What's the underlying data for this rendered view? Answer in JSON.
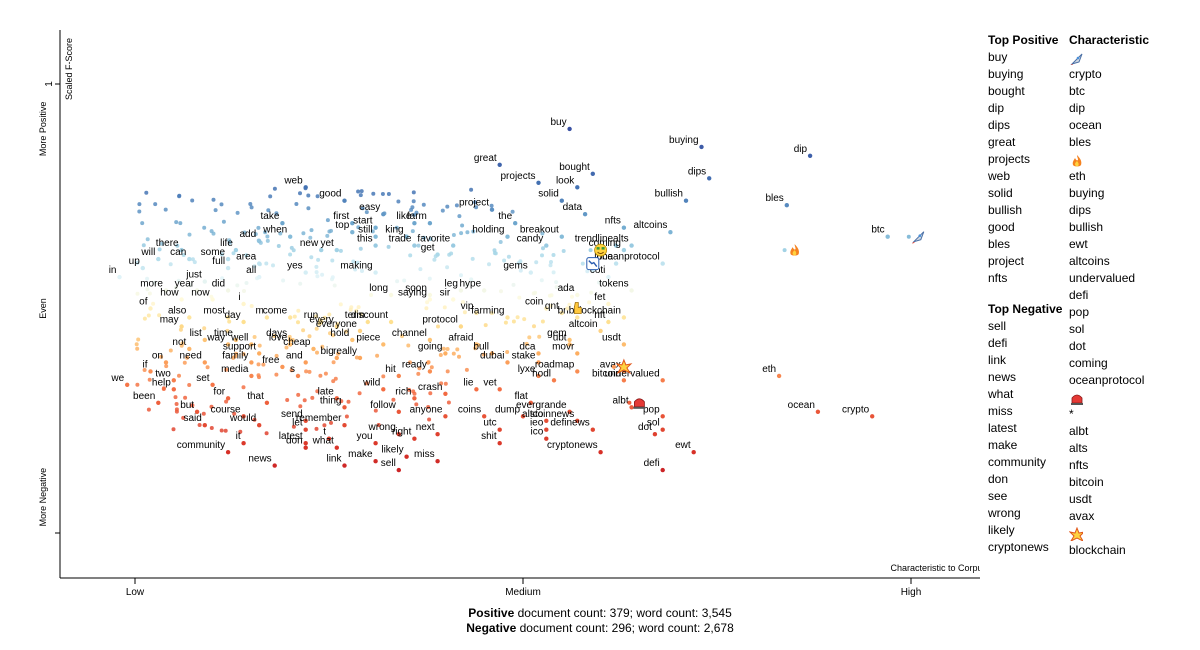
{
  "chart_data": {
    "type": "scatter",
    "y_axis": {
      "label": "Scaled F-Score",
      "ticks": [
        {
          "label": "1",
          "value": 1
        },
        {
          "label": "",
          "value": 0
        }
      ],
      "zones": [
        "More Positive",
        "Even",
        "More Negative"
      ],
      "range": [
        -0.2,
        1.2
      ]
    },
    "x_axis": {
      "caption": "Characteristic to Corpus",
      "range": [
        -0.2,
        1.2
      ],
      "ticks": [
        {
          "label": "Low",
          "value": 0
        },
        {
          "label": "Medium",
          "value": 0.5
        },
        {
          "label": "High",
          "value": 1
        }
      ]
    },
    "points": [
      {
        "t": "buy",
        "x": 0.56,
        "y": 0.9
      },
      {
        "t": "buying",
        "x": 0.73,
        "y": 0.86
      },
      {
        "t": "dip",
        "x": 0.87,
        "y": 0.84
      },
      {
        "t": "great",
        "x": 0.47,
        "y": 0.82
      },
      {
        "t": "bought",
        "x": 0.59,
        "y": 0.8
      },
      {
        "t": "dips",
        "x": 0.74,
        "y": 0.79
      },
      {
        "t": "projects",
        "x": 0.52,
        "y": 0.78
      },
      {
        "t": "look",
        "x": 0.57,
        "y": 0.77
      },
      {
        "t": "web",
        "x": 0.22,
        "y": 0.77
      },
      {
        "t": "bullish",
        "x": 0.71,
        "y": 0.74
      },
      {
        "t": "solid",
        "x": 0.55,
        "y": 0.74
      },
      {
        "t": "good",
        "x": 0.27,
        "y": 0.74
      },
      {
        "t": "bles",
        "x": 0.84,
        "y": 0.73
      },
      {
        "t": "project",
        "x": 0.46,
        "y": 0.72
      },
      {
        "t": "data",
        "x": 0.58,
        "y": 0.71
      },
      {
        "t": "easy",
        "x": 0.32,
        "y": 0.71
      },
      {
        "t": "like",
        "x": 0.36,
        "y": 0.69
      },
      {
        "t": "farm",
        "x": 0.38,
        "y": 0.69
      },
      {
        "t": "take",
        "x": 0.19,
        "y": 0.69
      },
      {
        "t": "first",
        "x": 0.28,
        "y": 0.69
      },
      {
        "t": "the",
        "x": 0.49,
        "y": 0.69
      },
      {
        "t": "nfts",
        "x": 0.63,
        "y": 0.68
      },
      {
        "t": "altcoins",
        "x": 0.69,
        "y": 0.67
      },
      {
        "t": "start",
        "x": 0.31,
        "y": 0.68
      },
      {
        "t": "top",
        "x": 0.28,
        "y": 0.67
      },
      {
        "t": "king",
        "x": 0.35,
        "y": 0.66
      },
      {
        "t": "breakout",
        "x": 0.55,
        "y": 0.66
      },
      {
        "t": "holding",
        "x": 0.48,
        "y": 0.66
      },
      {
        "t": "btc",
        "x": 0.97,
        "y": 0.66
      },
      {
        "t": "still",
        "x": 0.31,
        "y": 0.66
      },
      {
        "t": "when",
        "x": 0.2,
        "y": 0.66
      },
      {
        "t": "add",
        "x": 0.16,
        "y": 0.65
      },
      {
        "t": "candy",
        "x": 0.53,
        "y": 0.64
      },
      {
        "t": "trendline",
        "x": 0.62,
        "y": 0.64
      },
      {
        "t": "alts",
        "x": 0.64,
        "y": 0.64
      },
      {
        "t": "this",
        "x": 0.31,
        "y": 0.64
      },
      {
        "t": "trade",
        "x": 0.36,
        "y": 0.64
      },
      {
        "t": "favorite",
        "x": 0.41,
        "y": 0.64
      },
      {
        "t": "new",
        "x": 0.24,
        "y": 0.63
      },
      {
        "t": "yet",
        "x": 0.26,
        "y": 0.63
      },
      {
        "t": "life",
        "x": 0.13,
        "y": 0.63
      },
      {
        "t": "coming",
        "x": 0.63,
        "y": 0.63
      },
      {
        "t": "there",
        "x": 0.06,
        "y": 0.63
      },
      {
        "t": "get",
        "x": 0.39,
        "y": 0.62
      },
      {
        "t": "some",
        "x": 0.12,
        "y": 0.61
      },
      {
        "t": "will",
        "x": 0.03,
        "y": 0.61
      },
      {
        "t": "can",
        "x": 0.07,
        "y": 0.61
      },
      {
        "t": "area",
        "x": 0.16,
        "y": 0.6
      },
      {
        "t": "oceanprotocol",
        "x": 0.68,
        "y": 0.6
      },
      {
        "t": "luna",
        "x": 0.62,
        "y": 0.6
      },
      {
        "t": "full",
        "x": 0.12,
        "y": 0.59
      },
      {
        "t": "up",
        "x": 0.01,
        "y": 0.59
      },
      {
        "t": "yes",
        "x": 0.22,
        "y": 0.58
      },
      {
        "t": "making",
        "x": 0.31,
        "y": 0.58
      },
      {
        "t": "gems",
        "x": 0.51,
        "y": 0.58
      },
      {
        "t": "coti",
        "x": 0.61,
        "y": 0.57
      },
      {
        "t": "all",
        "x": 0.16,
        "y": 0.57
      },
      {
        "t": "in",
        "x": -0.02,
        "y": 0.57
      },
      {
        "t": "just",
        "x": 0.09,
        "y": 0.56
      },
      {
        "t": "more",
        "x": 0.04,
        "y": 0.54
      },
      {
        "t": "year",
        "x": 0.08,
        "y": 0.54
      },
      {
        "t": "did",
        "x": 0.12,
        "y": 0.54
      },
      {
        "t": "tokens",
        "x": 0.64,
        "y": 0.54
      },
      {
        "t": "long",
        "x": 0.33,
        "y": 0.53
      },
      {
        "t": "soon",
        "x": 0.38,
        "y": 0.53
      },
      {
        "t": "leg",
        "x": 0.42,
        "y": 0.54
      },
      {
        "t": "hype",
        "x": 0.45,
        "y": 0.54
      },
      {
        "t": "ada",
        "x": 0.57,
        "y": 0.53
      },
      {
        "t": "how",
        "x": 0.06,
        "y": 0.52
      },
      {
        "t": "now",
        "x": 0.1,
        "y": 0.52
      },
      {
        "t": "saying",
        "x": 0.38,
        "y": 0.52
      },
      {
        "t": "sir",
        "x": 0.41,
        "y": 0.52
      },
      {
        "t": "i",
        "x": 0.14,
        "y": 0.51
      },
      {
        "t": "fet",
        "x": 0.61,
        "y": 0.51
      },
      {
        "t": "coin",
        "x": 0.53,
        "y": 0.5
      },
      {
        "t": "of",
        "x": 0.02,
        "y": 0.5
      },
      {
        "t": "vip",
        "x": 0.44,
        "y": 0.49
      },
      {
        "t": "qnt",
        "x": 0.55,
        "y": 0.49
      },
      {
        "t": "farming",
        "x": 0.48,
        "y": 0.48
      },
      {
        "t": "bnb",
        "x": 0.57,
        "y": 0.48
      },
      {
        "t": "blockchain",
        "x": 0.63,
        "y": 0.48
      },
      {
        "t": "also",
        "x": 0.07,
        "y": 0.48
      },
      {
        "t": "most",
        "x": 0.12,
        "y": 0.48
      },
      {
        "t": "come",
        "x": 0.2,
        "y": 0.48
      },
      {
        "t": "m",
        "x": 0.17,
        "y": 0.48
      },
      {
        "t": "day",
        "x": 0.14,
        "y": 0.47
      },
      {
        "t": "run",
        "x": 0.24,
        "y": 0.47
      },
      {
        "t": "term",
        "x": 0.3,
        "y": 0.47
      },
      {
        "t": "discount",
        "x": 0.33,
        "y": 0.47
      },
      {
        "t": "nft",
        "x": 0.61,
        "y": 0.47
      },
      {
        "t": "may",
        "x": 0.06,
        "y": 0.46
      },
      {
        "t": "protocol",
        "x": 0.42,
        "y": 0.46
      },
      {
        "t": "every",
        "x": 0.26,
        "y": 0.46
      },
      {
        "t": "altcoin",
        "x": 0.6,
        "y": 0.45
      },
      {
        "t": "everyone",
        "x": 0.29,
        "y": 0.45
      },
      {
        "t": "list",
        "x": 0.09,
        "y": 0.43
      },
      {
        "t": "time",
        "x": 0.13,
        "y": 0.43
      },
      {
        "t": "days",
        "x": 0.2,
        "y": 0.43
      },
      {
        "t": "hold",
        "x": 0.28,
        "y": 0.43
      },
      {
        "t": "channel",
        "x": 0.38,
        "y": 0.43
      },
      {
        "t": "gem",
        "x": 0.56,
        "y": 0.43
      },
      {
        "t": "way",
        "x": 0.12,
        "y": 0.42
      },
      {
        "t": "well",
        "x": 0.15,
        "y": 0.42
      },
      {
        "t": "love",
        "x": 0.2,
        "y": 0.42
      },
      {
        "t": "piece",
        "x": 0.32,
        "y": 0.42
      },
      {
        "t": "afraid",
        "x": 0.44,
        "y": 0.42
      },
      {
        "t": "ubt",
        "x": 0.56,
        "y": 0.42
      },
      {
        "t": "usdt",
        "x": 0.63,
        "y": 0.42
      },
      {
        "t": "cheap",
        "x": 0.23,
        "y": 0.41
      },
      {
        "t": "not",
        "x": 0.07,
        "y": 0.41
      },
      {
        "t": "going",
        "x": 0.4,
        "y": 0.4
      },
      {
        "t": "bull",
        "x": 0.46,
        "y": 0.4
      },
      {
        "t": "dca",
        "x": 0.52,
        "y": 0.4
      },
      {
        "t": "movr",
        "x": 0.57,
        "y": 0.4
      },
      {
        "t": "support",
        "x": 0.16,
        "y": 0.4
      },
      {
        "t": "really",
        "x": 0.29,
        "y": 0.39
      },
      {
        "t": "big",
        "x": 0.26,
        "y": 0.39
      },
      {
        "t": "family",
        "x": 0.15,
        "y": 0.38
      },
      {
        "t": "and",
        "x": 0.22,
        "y": 0.38
      },
      {
        "t": "dubai",
        "x": 0.48,
        "y": 0.38
      },
      {
        "t": "stake",
        "x": 0.52,
        "y": 0.38
      },
      {
        "t": "on",
        "x": 0.04,
        "y": 0.38
      },
      {
        "t": "need",
        "x": 0.09,
        "y": 0.38
      },
      {
        "t": "free",
        "x": 0.19,
        "y": 0.37
      },
      {
        "t": "roadmap",
        "x": 0.57,
        "y": 0.36
      },
      {
        "t": "avax",
        "x": 0.63,
        "y": 0.36
      },
      {
        "t": "ready",
        "x": 0.38,
        "y": 0.36
      },
      {
        "t": "if",
        "x": 0.02,
        "y": 0.36
      },
      {
        "t": "media",
        "x": 0.15,
        "y": 0.35
      },
      {
        "t": "lyxe",
        "x": 0.52,
        "y": 0.35
      },
      {
        "t": "eth",
        "x": 0.83,
        "y": 0.35
      },
      {
        "t": "s",
        "x": 0.21,
        "y": 0.35
      },
      {
        "t": "hit",
        "x": 0.34,
        "y": 0.35
      },
      {
        "t": "two",
        "x": 0.05,
        "y": 0.34
      },
      {
        "t": "hodl",
        "x": 0.54,
        "y": 0.34
      },
      {
        "t": "bitcoin",
        "x": 0.63,
        "y": 0.34
      },
      {
        "t": "undervalued",
        "x": 0.68,
        "y": 0.34
      },
      {
        "t": "set",
        "x": 0.1,
        "y": 0.33
      },
      {
        "t": "we",
        "x": -0.01,
        "y": 0.33
      },
      {
        "t": "help",
        "x": 0.05,
        "y": 0.32
      },
      {
        "t": "wild",
        "x": 0.32,
        "y": 0.32
      },
      {
        "t": "lie",
        "x": 0.44,
        "y": 0.32
      },
      {
        "t": "vet",
        "x": 0.47,
        "y": 0.32
      },
      {
        "t": "rich",
        "x": 0.36,
        "y": 0.3
      },
      {
        "t": "crash",
        "x": 0.4,
        "y": 0.31
      },
      {
        "t": "late",
        "x": 0.26,
        "y": 0.3
      },
      {
        "t": "for",
        "x": 0.12,
        "y": 0.3
      },
      {
        "t": "that",
        "x": 0.17,
        "y": 0.29
      },
      {
        "t": "been",
        "x": 0.03,
        "y": 0.29
      },
      {
        "t": "flat",
        "x": 0.51,
        "y": 0.29
      },
      {
        "t": "thing",
        "x": 0.27,
        "y": 0.28
      },
      {
        "t": "albt",
        "x": 0.64,
        "y": 0.28
      },
      {
        "t": "evergrande",
        "x": 0.56,
        "y": 0.27
      },
      {
        "t": "but",
        "x": 0.08,
        "y": 0.27
      },
      {
        "t": "follow",
        "x": 0.34,
        "y": 0.27
      },
      {
        "t": "ocean",
        "x": 0.88,
        "y": 0.27
      },
      {
        "t": "crypto",
        "x": 0.95,
        "y": 0.26
      },
      {
        "t": "course",
        "x": 0.14,
        "y": 0.26
      },
      {
        "t": "pop",
        "x": 0.68,
        "y": 0.26
      },
      {
        "t": "anyone",
        "x": 0.4,
        "y": 0.26
      },
      {
        "t": "coins",
        "x": 0.45,
        "y": 0.26
      },
      {
        "t": "dump",
        "x": 0.5,
        "y": 0.26
      },
      {
        "t": "send",
        "x": 0.22,
        "y": 0.25
      },
      {
        "t": "sto",
        "x": 0.53,
        "y": 0.25
      },
      {
        "t": "altcoinnews",
        "x": 0.57,
        "y": 0.25
      },
      {
        "t": "would",
        "x": 0.16,
        "y": 0.24
      },
      {
        "t": "said",
        "x": 0.09,
        "y": 0.24
      },
      {
        "t": "remember",
        "x": 0.27,
        "y": 0.24
      },
      {
        "t": "let",
        "x": 0.22,
        "y": 0.23
      },
      {
        "t": "utc",
        "x": 0.47,
        "y": 0.23
      },
      {
        "t": "ieo",
        "x": 0.53,
        "y": 0.23
      },
      {
        "t": "definews",
        "x": 0.59,
        "y": 0.23
      },
      {
        "t": "sol",
        "x": 0.68,
        "y": 0.23
      },
      {
        "t": "next",
        "x": 0.39,
        "y": 0.22
      },
      {
        "t": "wrong",
        "x": 0.34,
        "y": 0.22
      },
      {
        "t": "dot",
        "x": 0.67,
        "y": 0.22
      },
      {
        "t": "t",
        "x": 0.25,
        "y": 0.21
      },
      {
        "t": "right",
        "x": 0.36,
        "y": 0.21
      },
      {
        "t": "ico",
        "x": 0.53,
        "y": 0.21
      },
      {
        "t": "it",
        "x": 0.14,
        "y": 0.2
      },
      {
        "t": "shit",
        "x": 0.47,
        "y": 0.2
      },
      {
        "t": "you",
        "x": 0.31,
        "y": 0.2
      },
      {
        "t": "latest",
        "x": 0.22,
        "y": 0.2
      },
      {
        "t": "what",
        "x": 0.26,
        "y": 0.19
      },
      {
        "t": "don",
        "x": 0.22,
        "y": 0.19
      },
      {
        "t": "cryptonews",
        "x": 0.6,
        "y": 0.18
      },
      {
        "t": "ewt",
        "x": 0.72,
        "y": 0.18
      },
      {
        "t": "community",
        "x": 0.12,
        "y": 0.18
      },
      {
        "t": "likely",
        "x": 0.35,
        "y": 0.17
      },
      {
        "t": "miss",
        "x": 0.39,
        "y": 0.16
      },
      {
        "t": "make",
        "x": 0.31,
        "y": 0.16
      },
      {
        "t": "news",
        "x": 0.18,
        "y": 0.15
      },
      {
        "t": "link",
        "x": 0.27,
        "y": 0.15
      },
      {
        "t": "defi",
        "x": 0.68,
        "y": 0.14
      },
      {
        "t": "sell",
        "x": 0.34,
        "y": 0.14
      }
    ],
    "emoji_points": [
      {
        "e": "rocket",
        "x": 1.01,
        "y": 0.66
      },
      {
        "e": "fire",
        "x": 0.85,
        "y": 0.63
      },
      {
        "e": "money-face",
        "x": 0.6,
        "y": 0.63
      },
      {
        "e": "chart-down",
        "x": 0.59,
        "y": 0.6
      },
      {
        "e": "hand-point",
        "x": 0.57,
        "y": 0.5
      },
      {
        "e": "collision",
        "x": 0.63,
        "y": 0.37
      },
      {
        "e": "siren",
        "x": 0.65,
        "y": 0.29
      }
    ],
    "extra_dots": {
      "count": 360
    }
  },
  "top_positive": {
    "heading": "Top Positive",
    "items": [
      "buy",
      "buying",
      "bought",
      "dip",
      "dips",
      "great",
      "projects",
      "web",
      "solid",
      "bullish",
      "good",
      "bles",
      "project",
      "nfts"
    ]
  },
  "top_negative": {
    "heading": "Top Negative",
    "items": [
      "sell",
      "defi",
      "link",
      "news",
      "what",
      "miss",
      "latest",
      "make",
      "community",
      "don",
      "see",
      "wrong",
      "likely",
      "cryptonews"
    ]
  },
  "characteristic": {
    "heading": "Characteristic",
    "items": [
      {
        "icon": "rocket"
      },
      {
        "text": "crypto"
      },
      {
        "text": "btc"
      },
      {
        "text": "dip"
      },
      {
        "text": "ocean"
      },
      {
        "text": "bles"
      },
      {
        "icon": "fire"
      },
      {
        "text": "eth"
      },
      {
        "text": "buying"
      },
      {
        "text": "dips"
      },
      {
        "text": "bullish"
      },
      {
        "text": "ewt"
      },
      {
        "text": "altcoins"
      },
      {
        "text": "undervalued"
      },
      {
        "text": "defi"
      },
      {
        "text": "pop"
      },
      {
        "text": "sol"
      },
      {
        "text": "dot"
      },
      {
        "text": "coming"
      },
      {
        "text": "oceanprotocol"
      },
      {
        "icon": "siren"
      },
      {
        "text": "*"
      },
      {
        "text": "albt"
      },
      {
        "text": "alts"
      },
      {
        "text": "nfts"
      },
      {
        "text": "bitcoin"
      },
      {
        "text": "usdt"
      },
      {
        "text": "avax"
      },
      {
        "icon": "collision"
      },
      {
        "text": "blockchain"
      }
    ]
  },
  "counts": {
    "positive_label": "Positive",
    "positive_rest": " document count: 379; word count: 3,545",
    "negative_label": "Negative",
    "negative_rest": " document count: 296; word count: 2,678"
  },
  "colors": {
    "positive": "#3a55a4",
    "even": "#f3f0d0",
    "negative": "#b2182b"
  }
}
